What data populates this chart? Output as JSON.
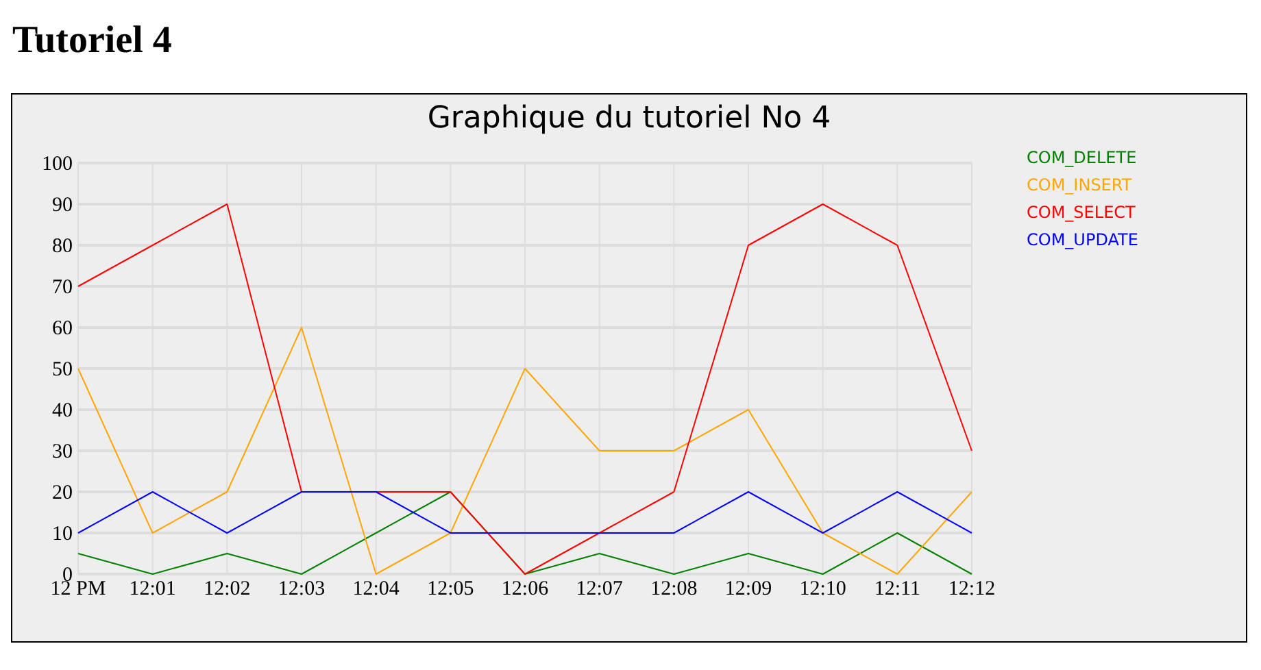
{
  "chart_data": {
    "type": "line",
    "title": "Graphique du tutoriel No 4",
    "annotations": [
      "Tutoriel 4"
    ],
    "categories": [
      "12 PM",
      "12:01",
      "12:02",
      "12:03",
      "12:04",
      "12:05",
      "12:06",
      "12:07",
      "12:08",
      "12:09",
      "12:10",
      "12:11",
      "12:12"
    ],
    "ylim": [
      0,
      100
    ],
    "yticks": [
      0,
      10,
      20,
      30,
      40,
      50,
      60,
      70,
      80,
      90,
      100
    ],
    "grid": true,
    "legend": "right",
    "marker": "none",
    "line_style": "solid",
    "series": [
      {
        "name": "COM_DELETE",
        "color": "#008000",
        "values": [
          5,
          0,
          5,
          0,
          10,
          20,
          0,
          5,
          0,
          5,
          0,
          10,
          0
        ]
      },
      {
        "name": "COM_INSERT",
        "color": "#ffa500",
        "values": [
          50,
          10,
          20,
          60,
          0,
          10,
          50,
          30,
          30,
          40,
          10,
          0,
          20
        ]
      },
      {
        "name": "COM_SELECT",
        "color": "#ff0000",
        "values": [
          70,
          80,
          90,
          20,
          20,
          20,
          0,
          10,
          20,
          80,
          90,
          80,
          30
        ]
      },
      {
        "name": "COM_UPDATE",
        "color": "#0000ff",
        "values": [
          10,
          20,
          10,
          20,
          20,
          10,
          10,
          10,
          10,
          20,
          10,
          20,
          10
        ]
      }
    ]
  }
}
